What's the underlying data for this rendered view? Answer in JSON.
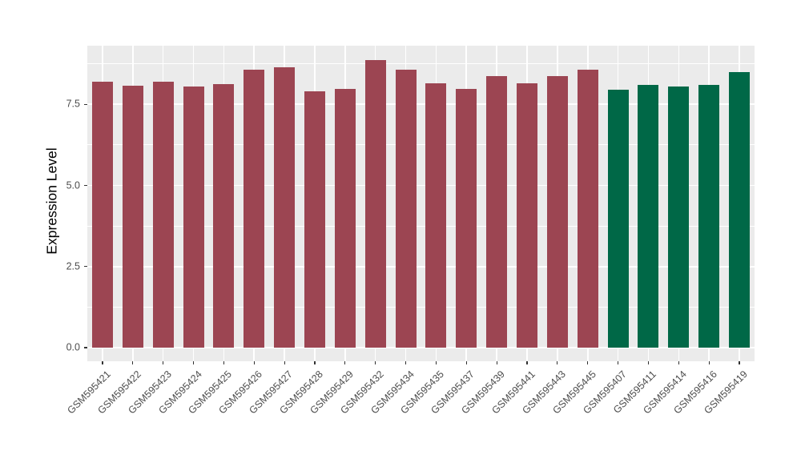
{
  "figure": {
    "background": "#FFFFFF",
    "panel_background": "#EBEBEB",
    "grid_color": "#FFFFFF",
    "axis_text_color": "#4D4D4D",
    "axis_title_color": "#000000",
    "tick_mark_color": "#333333",
    "bar_color_group1": "#9C4552",
    "bar_color_group2": "#006847"
  },
  "chart_data": {
    "type": "bar",
    "title": "",
    "xlabel": "",
    "ylabel": "Expression Level",
    "categories": [
      "GSM595421",
      "GSM595422",
      "GSM595423",
      "GSM595424",
      "GSM595425",
      "GSM595426",
      "GSM595427",
      "GSM595428",
      "GSM595429",
      "GSM595432",
      "GSM595434",
      "GSM595435",
      "GSM595437",
      "GSM595439",
      "GSM595441",
      "GSM595443",
      "GSM595445",
      "GSM595407",
      "GSM595411",
      "GSM595414",
      "GSM595416",
      "GSM595419"
    ],
    "values": [
      8.2,
      8.08,
      8.2,
      8.06,
      8.13,
      8.57,
      8.63,
      7.91,
      7.98,
      8.87,
      8.58,
      8.16,
      7.97,
      8.38,
      8.16,
      8.38,
      8.57,
      7.94,
      8.1,
      8.06,
      8.1,
      8.5
    ],
    "bar_colors": [
      "#9C4552",
      "#9C4552",
      "#9C4552",
      "#9C4552",
      "#9C4552",
      "#9C4552",
      "#9C4552",
      "#9C4552",
      "#9C4552",
      "#9C4552",
      "#9C4552",
      "#9C4552",
      "#9C4552",
      "#9C4552",
      "#9C4552",
      "#9C4552",
      "#9C4552",
      "#006847",
      "#006847",
      "#006847",
      "#006847",
      "#006847"
    ],
    "ylim": [
      0,
      9.3
    ],
    "yticks": [
      0,
      2.5,
      5.0,
      7.5
    ],
    "ytick_labels": [
      "0.0",
      "2.5",
      "5.0",
      "7.5"
    ],
    "yticks_minor": [
      1.25,
      3.75,
      6.25,
      8.75
    ],
    "grid": "on",
    "legend": "none",
    "x_tick_rotation_deg": 45
  }
}
